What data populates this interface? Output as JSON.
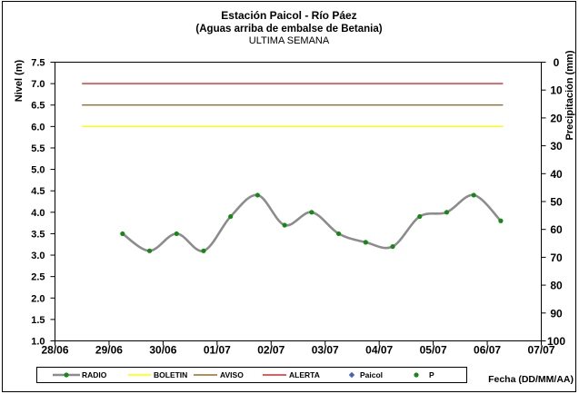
{
  "chart_data": {
    "type": "line",
    "title": "Estación Paicol - Río Páez",
    "subtitle": "(Aguas arriba de embalse de Betania)",
    "period": "ULTIMA SEMANA",
    "xlabel": "Fecha (DD/MM/AA)",
    "ylabel": "Nivel (m)",
    "y2label": "Precipitación (mm)",
    "xlim": [
      "28/06",
      "07/07"
    ],
    "x_ticks": [
      "28/06",
      "29/06",
      "30/06",
      "01/07",
      "02/07",
      "03/07",
      "04/07",
      "05/07",
      "06/07",
      "07/07"
    ],
    "ylim": [
      1.0,
      7.5
    ],
    "y_ticks": [
      "1.0",
      "1.5",
      "2.0",
      "2.5",
      "3.0",
      "3.5",
      "4.0",
      "4.5",
      "5.0",
      "5.5",
      "6.0",
      "6.5",
      "7.0",
      "7.5"
    ],
    "y2lim": [
      0,
      100
    ],
    "y2_reversed": true,
    "y2_ticks": [
      "0",
      "10",
      "20",
      "30",
      "40",
      "50",
      "60",
      "70",
      "80",
      "90",
      "100"
    ],
    "grid": false,
    "legend_position": "bottom",
    "series": [
      {
        "name": "RADIO",
        "axis": "left",
        "smooth": true,
        "line_color": "#8c8c8c",
        "marker": "circle",
        "marker_color": "#138a13",
        "x": [
          "29/06 06:00",
          "29/06 18:00",
          "30/06 06:00",
          "30/06 18:00",
          "01/07 06:00",
          "01/07 18:00",
          "02/07 06:00",
          "02/07 18:00",
          "03/07 06:00",
          "03/07 18:00",
          "04/07 06:00",
          "04/07 18:00",
          "05/07 06:00",
          "05/07 18:00",
          "06/07 06:00"
        ],
        "y": [
          3.5,
          3.1,
          3.5,
          3.1,
          3.9,
          4.4,
          3.7,
          4.0,
          3.5,
          3.3,
          3.2,
          3.9,
          4.0,
          4.4,
          3.8
        ]
      },
      {
        "name": "BOLETIN",
        "axis": "left",
        "line_color": "#ffff00",
        "x": [
          "28/06 12:00",
          "06/07 07:00"
        ],
        "y": [
          6.0,
          6.0
        ]
      },
      {
        "name": "AVISO",
        "axis": "left",
        "line_color": "#9a6a2c",
        "x": [
          "28/06 12:00",
          "06/07 07:00"
        ],
        "y": [
          6.5,
          6.5
        ]
      },
      {
        "name": "ALERTA",
        "axis": "left",
        "line_color": "#d42a2a",
        "x": [
          "28/06 12:00",
          "06/07 07:00"
        ],
        "y": [
          7.0,
          7.0
        ]
      },
      {
        "name": "Paicol",
        "axis": "left",
        "marker": "diamond",
        "marker_color": "#4462c4",
        "x": [],
        "y": []
      },
      {
        "name": "P",
        "axis": "right",
        "marker": "circle",
        "marker_color": "#138a13",
        "x": [],
        "y": []
      }
    ]
  }
}
